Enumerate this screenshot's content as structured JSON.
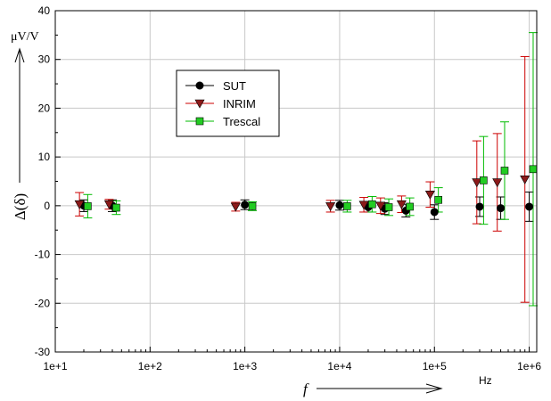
{
  "chart_data": {
    "type": "scatter",
    "title": "",
    "xlabel": "f",
    "xunit": "Hz",
    "ylabel": "Δ(δ)",
    "yunit": "μV/V",
    "xscale": "log",
    "xlim": [
      10,
      1200000
    ],
    "ylim": [
      -30,
      40
    ],
    "grid": true,
    "legend_position": "top-left",
    "x_tick_labels": [
      "1e+1",
      "1e+2",
      "1e+3",
      "1e+4",
      "1e+5",
      "1e+6"
    ],
    "y_tick_labels": [
      "-30",
      "-20",
      "-10",
      "0",
      "10",
      "20",
      "30",
      "40"
    ],
    "series": [
      {
        "name": "SUT",
        "color": "#000000",
        "marker": "circle",
        "points": [
          {
            "x": 20,
            "y": 0.0,
            "err": 1.2
          },
          {
            "x": 40,
            "y": 0.0,
            "err": 1.2
          },
          {
            "x": 1000,
            "y": 0.2,
            "err": 1.0
          },
          {
            "x": 10000,
            "y": 0.1,
            "err": 1.0
          },
          {
            "x": 20000,
            "y": -0.3,
            "err": 1.0
          },
          {
            "x": 30000,
            "y": -0.6,
            "err": 1.2
          },
          {
            "x": 50000,
            "y": -1.0,
            "err": 1.3
          },
          {
            "x": 100000,
            "y": -1.3,
            "err": 1.5
          },
          {
            "x": 300000,
            "y": -0.2,
            "err": 2.0
          },
          {
            "x": 500000,
            "y": -0.5,
            "err": 2.3
          },
          {
            "x": 1000000,
            "y": -0.2,
            "err": 3.0
          }
        ]
      },
      {
        "name": "INRIM",
        "color": "#cc0000",
        "marker": "triangle-down",
        "points": [
          {
            "x": 18,
            "y": 0.3,
            "err": 2.4
          },
          {
            "x": 37,
            "y": 0.3,
            "err": 1.0
          },
          {
            "x": 800,
            "y": -0.2,
            "err": 0.9
          },
          {
            "x": 8000,
            "y": -0.1,
            "err": 1.2
          },
          {
            "x": 18000,
            "y": 0.2,
            "err": 1.5
          },
          {
            "x": 27000,
            "y": 0.0,
            "err": 1.6
          },
          {
            "x": 45000,
            "y": 0.3,
            "err": 1.7
          },
          {
            "x": 90000,
            "y": 2.3,
            "err": 2.6
          },
          {
            "x": 280000,
            "y": 4.8,
            "err": 8.5
          },
          {
            "x": 460000,
            "y": 4.8,
            "err": 10.0
          },
          {
            "x": 900000,
            "y": 5.4,
            "err": 25.2
          }
        ]
      },
      {
        "name": "Trescal",
        "color": "#00bb00",
        "marker": "square",
        "points": [
          {
            "x": 22,
            "y": -0.1,
            "err": 2.4
          },
          {
            "x": 44,
            "y": -0.4,
            "err": 1.4
          },
          {
            "x": 1200,
            "y": -0.1,
            "err": 0.9
          },
          {
            "x": 12000,
            "y": -0.1,
            "err": 1.2
          },
          {
            "x": 22000,
            "y": 0.3,
            "err": 1.6
          },
          {
            "x": 33000,
            "y": -0.3,
            "err": 1.7
          },
          {
            "x": 55000,
            "y": -0.2,
            "err": 1.8
          },
          {
            "x": 110000,
            "y": 1.2,
            "err": 2.5
          },
          {
            "x": 330000,
            "y": 5.2,
            "err": 9.0
          },
          {
            "x": 550000,
            "y": 7.2,
            "err": 10.0
          },
          {
            "x": 1100000,
            "y": 7.5,
            "err": 28.0
          }
        ]
      }
    ]
  }
}
